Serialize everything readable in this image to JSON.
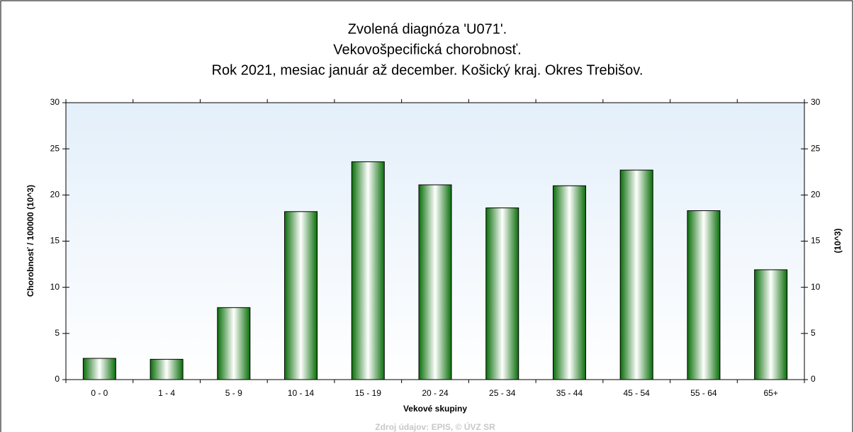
{
  "chart_data": {
    "type": "bar",
    "title": [
      "Zvolená diagnóza 'U071'.",
      "Vekovošpecifická chorobnosť.",
      "Rok 2021, mesiac január až december. Košický kraj. Okres Trebišov."
    ],
    "xlabel": "Vekové skupiny",
    "ylabel": "Chorobnosť / 100000 (10^3)",
    "y2label": "(10^3)",
    "source": "Zdroj údajov: EPIS, © ÚVZ SR",
    "categories": [
      "0 - 0",
      "1 - 4",
      "5 - 9",
      "10 - 14",
      "15 - 19",
      "20 - 24",
      "25 - 34",
      "35 - 44",
      "45 - 54",
      "55 - 64",
      "65+"
    ],
    "values": [
      2.3,
      2.2,
      7.8,
      18.2,
      23.6,
      21.1,
      18.6,
      21.0,
      22.7,
      18.3,
      11.9
    ],
    "color": "#0a8a0a",
    "ylim": [
      0,
      30
    ],
    "yticks": [
      0,
      5,
      10,
      15,
      20,
      25,
      30
    ],
    "y2lim": [
      0,
      30
    ],
    "y2ticks": [
      0,
      5,
      10,
      15,
      20,
      25,
      30
    ],
    "grid": false
  }
}
